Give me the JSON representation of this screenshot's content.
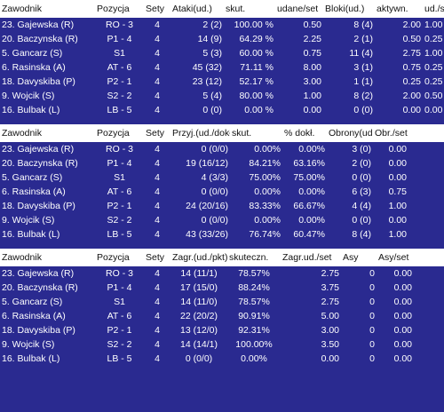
{
  "tables": [
    {
      "headers": [
        "Zawodnik",
        "Pozycja",
        "Sety",
        "Ataki(ud.)",
        "skut.",
        "udane/set",
        "Bloki(ud.)",
        "aktywn.",
        "ud./set"
      ],
      "rows": [
        [
          "23. Gajewska (R)",
          "RO - 3",
          "4",
          "2 (2)",
          "100.00 %",
          "0.50",
          "8 (4)",
          "2.00",
          "1.00"
        ],
        [
          "20. Baczynska (R)",
          "P1 - 4",
          "4",
          "14 (9)",
          "64.29 %",
          "2.25",
          "2 (1)",
          "0.50",
          "0.25"
        ],
        [
          "5. Gancarz (S)",
          "S1",
          "4",
          "5 (3)",
          "60.00 %",
          "0.75",
          "11 (4)",
          "2.75",
          "1.00"
        ],
        [
          "6. Rasinska (A)",
          "AT - 6",
          "4",
          "45 (32)",
          "71.11 %",
          "8.00",
          "3 (1)",
          "0.75",
          "0.25"
        ],
        [
          "18. Davyskiba (P)",
          "P2 - 1",
          "4",
          "23 (12)",
          "52.17 %",
          "3.00",
          "1 (1)",
          "0.25",
          "0.25"
        ],
        [
          "9. Wojcik (S)",
          "S2 - 2",
          "4",
          "5 (4)",
          "80.00 %",
          "1.00",
          "8 (2)",
          "2.00",
          "0.50"
        ],
        [
          "16. Bulbak (L)",
          "LB - 5",
          "4",
          "0 (0)",
          "0.00 %",
          "0.00",
          "0 (0)",
          "0.00",
          "0.00"
        ]
      ]
    },
    {
      "headers": [
        "Zawodnik",
        "Pozycja",
        "Sety",
        "Przyj.(ud./dokł.)",
        "skut.",
        "% dokł.",
        "Obrony(ud.)",
        "Obr./set"
      ],
      "rows": [
        [
          "23. Gajewska (R)",
          "RO - 3",
          "4",
          "0 (0/0)",
          "0.00%",
          "0.00%",
          "3 (0)",
          "0.00"
        ],
        [
          "20. Baczynska (R)",
          "P1 - 4",
          "4",
          "19 (16/12)",
          "84.21%",
          "63.16%",
          "2 (0)",
          "0.00"
        ],
        [
          "5. Gancarz (S)",
          "S1",
          "4",
          "4 (3/3)",
          "75.00%",
          "75.00%",
          "0 (0)",
          "0.00"
        ],
        [
          "6. Rasinska (A)",
          "AT - 6",
          "4",
          "0 (0/0)",
          "0.00%",
          "0.00%",
          "6 (3)",
          "0.75"
        ],
        [
          "18. Davyskiba (P)",
          "P2 - 1",
          "4",
          "24 (20/16)",
          "83.33%",
          "66.67%",
          "4 (4)",
          "1.00"
        ],
        [
          "9. Wojcik (S)",
          "S2 - 2",
          "4",
          "0 (0/0)",
          "0.00%",
          "0.00%",
          "0 (0)",
          "0.00"
        ],
        [
          "16. Bulbak (L)",
          "LB - 5",
          "4",
          "43 (33/26)",
          "76.74%",
          "60.47%",
          "8 (4)",
          "1.00"
        ]
      ]
    },
    {
      "headers": [
        "Zawodnik",
        "Pozycja",
        "Sety",
        "Zagr.(ud./pkt)",
        "skuteczn.",
        "Zagr.ud./set",
        "Asy",
        "Asy/set"
      ],
      "rows": [
        [
          "23. Gajewska (R)",
          "RO - 3",
          "4",
          "14 (11/1)",
          "78.57%",
          "2.75",
          "0",
          "0.00"
        ],
        [
          "20. Baczynska (R)",
          "P1 - 4",
          "4",
          "17 (15/0)",
          "88.24%",
          "3.75",
          "0",
          "0.00"
        ],
        [
          "5. Gancarz (S)",
          "S1",
          "4",
          "14 (11/0)",
          "78.57%",
          "2.75",
          "0",
          "0.00"
        ],
        [
          "6. Rasinska (A)",
          "AT - 6",
          "4",
          "22 (20/2)",
          "90.91%",
          "5.00",
          "0",
          "0.00"
        ],
        [
          "18. Davyskiba (P)",
          "P2 - 1",
          "4",
          "13 (12/0)",
          "92.31%",
          "3.00",
          "0",
          "0.00"
        ],
        [
          "9. Wojcik (S)",
          "S2 - 2",
          "4",
          "14 (14/1)",
          "100.00%",
          "3.50",
          "0",
          "0.00"
        ],
        [
          "16. Bulbak (L)",
          "LB - 5",
          "4",
          "0 (0/0)",
          "0.00%",
          "0.00",
          "0",
          "0.00"
        ]
      ]
    }
  ]
}
